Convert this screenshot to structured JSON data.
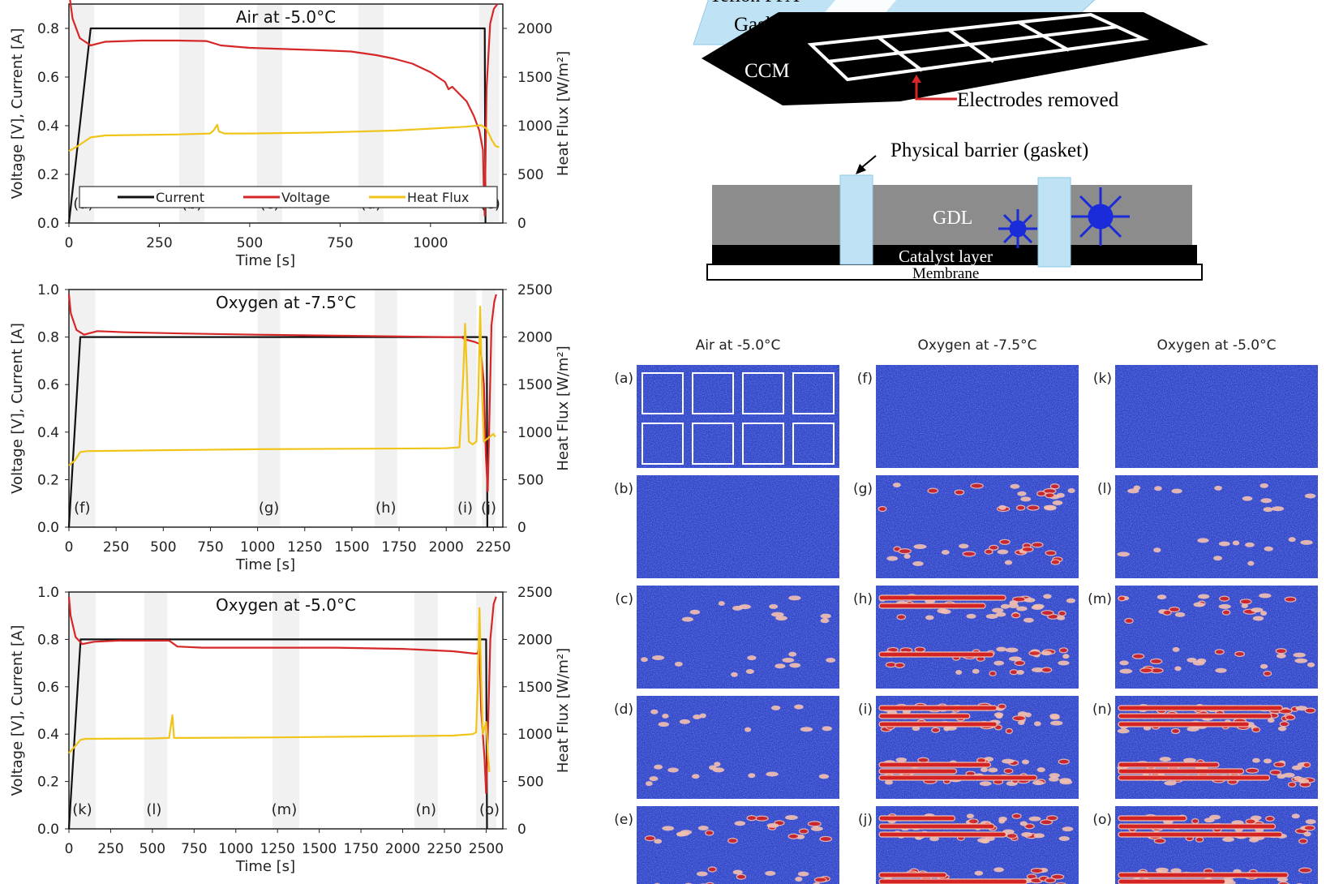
{
  "chart_data": [
    {
      "type": "line",
      "title": "Air at -5.0°C",
      "xlabel": "Time [s]",
      "ylabel": "Voltage [V], Current [A]",
      "y2label": "Heat Flux [W/m²]",
      "xlim": [
        0,
        1200
      ],
      "ylim": [
        0,
        0.9
      ],
      "y2lim": [
        0,
        2250
      ],
      "xticks": [
        "0",
        "250",
        "500",
        "750",
        "1000"
      ],
      "yticks": [
        "0.0",
        "0.2",
        "0.4",
        "0.6",
        "0.8"
      ],
      "y2ticks": [
        "0",
        "500",
        "1000",
        "1500",
        "2000"
      ],
      "grid": false,
      "legend_position": "bottom",
      "stage_labels": [
        {
          "label": "(a)",
          "x": 40
        },
        {
          "label": "(b)",
          "x": 340
        },
        {
          "label": "(c)",
          "x": 555
        },
        {
          "label": "(d)",
          "x": 835
        },
        {
          "label": "(e)",
          "x": 1165
        }
      ],
      "bands": [
        [
          0,
          70
        ],
        [
          305,
          375
        ],
        [
          520,
          590
        ],
        [
          800,
          870
        ],
        [
          1135,
          1190
        ]
      ],
      "series": [
        {
          "name": "Current",
          "color": "#111111",
          "axis": "left",
          "points": [
            [
              0,
              0
            ],
            [
              60,
              0.8
            ],
            [
              1140,
              0.8
            ],
            [
              1150,
              0.8
            ],
            [
              1152,
              0
            ]
          ]
        },
        {
          "name": "Voltage",
          "color": "#d62728",
          "axis": "left",
          "points": [
            [
              0,
              0.95
            ],
            [
              10,
              0.84
            ],
            [
              30,
              0.76
            ],
            [
              60,
              0.73
            ],
            [
              100,
              0.745
            ],
            [
              200,
              0.75
            ],
            [
              300,
              0.75
            ],
            [
              380,
              0.748
            ],
            [
              420,
              0.73
            ],
            [
              500,
              0.72
            ],
            [
              600,
              0.715
            ],
            [
              700,
              0.71
            ],
            [
              780,
              0.705
            ],
            [
              850,
              0.69
            ],
            [
              900,
              0.675
            ],
            [
              950,
              0.655
            ],
            [
              1000,
              0.62
            ],
            [
              1040,
              0.58
            ],
            [
              1050,
              0.55
            ],
            [
              1060,
              0.56
            ],
            [
              1080,
              0.53
            ],
            [
              1100,
              0.5
            ],
            [
              1120,
              0.44
            ],
            [
              1135,
              0.38
            ],
            [
              1145,
              0.3
            ],
            [
              1148,
              0.1
            ],
            [
              1150,
              0.03
            ],
            [
              1155,
              0.55
            ],
            [
              1165,
              0.82
            ],
            [
              1175,
              0.88
            ],
            [
              1185,
              0.9
            ]
          ]
        },
        {
          "name": "Heat Flux",
          "color": "#f0c419",
          "axis": "right",
          "points": [
            [
              0,
              740
            ],
            [
              20,
              780
            ],
            [
              40,
              830
            ],
            [
              60,
              880
            ],
            [
              100,
              900
            ],
            [
              200,
              905
            ],
            [
              300,
              910
            ],
            [
              390,
              920
            ],
            [
              400,
              950
            ],
            [
              410,
              1010
            ],
            [
              415,
              940
            ],
            [
              430,
              920
            ],
            [
              500,
              920
            ],
            [
              600,
              925
            ],
            [
              700,
              930
            ],
            [
              800,
              940
            ],
            [
              900,
              950
            ],
            [
              1000,
              970
            ],
            [
              1100,
              990
            ],
            [
              1140,
              1005
            ],
            [
              1155,
              970
            ],
            [
              1170,
              850
            ],
            [
              1180,
              790
            ],
            [
              1190,
              780
            ]
          ]
        }
      ]
    },
    {
      "type": "line",
      "title": "Oxygen at -7.5°C",
      "xlabel": "Time [s]",
      "ylabel": "Voltage [V], Current [A]",
      "y2label": "Heat Flux [W/m²]",
      "xlim": [
        0,
        2300
      ],
      "ylim": [
        0,
        1.0
      ],
      "y2lim": [
        0,
        2500
      ],
      "xticks": [
        "0",
        "250",
        "500",
        "750",
        "1000",
        "1250",
        "1500",
        "1750",
        "2000",
        "2250"
      ],
      "yticks": [
        "0.0",
        "0.2",
        "0.4",
        "0.6",
        "0.8",
        "1.0"
      ],
      "y2ticks": [
        "0",
        "500",
        "1000",
        "1500",
        "2000",
        "2500"
      ],
      "grid": false,
      "stage_labels": [
        {
          "label": "(f)",
          "x": 70
        },
        {
          "label": "(g)",
          "x": 1060
        },
        {
          "label": "(h)",
          "x": 1680
        },
        {
          "label": "(i)",
          "x": 2100
        },
        {
          "label": "(j)",
          "x": 2225
        }
      ],
      "bands": [
        [
          0,
          140
        ],
        [
          1000,
          1120
        ],
        [
          1620,
          1740
        ],
        [
          2040,
          2160
        ],
        [
          2190,
          2260
        ]
      ],
      "series": [
        {
          "name": "Current",
          "color": "#111111",
          "axis": "left",
          "points": [
            [
              0,
              0
            ],
            [
              60,
              0.8
            ],
            [
              2200,
              0.8
            ],
            [
              2215,
              0.8
            ],
            [
              2218,
              0
            ]
          ]
        },
        {
          "name": "Voltage",
          "color": "#d62728",
          "axis": "left",
          "points": [
            [
              0,
              0.98
            ],
            [
              10,
              0.9
            ],
            [
              40,
              0.83
            ],
            [
              80,
              0.81
            ],
            [
              150,
              0.825
            ],
            [
              300,
              0.82
            ],
            [
              600,
              0.815
            ],
            [
              1000,
              0.81
            ],
            [
              1500,
              0.805
            ],
            [
              2000,
              0.8
            ],
            [
              2080,
              0.8
            ],
            [
              2100,
              0.79
            ],
            [
              2150,
              0.78
            ],
            [
              2180,
              0.77
            ],
            [
              2200,
              0.6
            ],
            [
              2210,
              0.3
            ],
            [
              2220,
              0.15
            ],
            [
              2230,
              0.5
            ],
            [
              2240,
              0.85
            ],
            [
              2255,
              0.95
            ],
            [
              2265,
              0.98
            ]
          ]
        },
        {
          "name": "Heat Flux",
          "color": "#f0c419",
          "axis": "right",
          "points": [
            [
              0,
              650
            ],
            [
              30,
              700
            ],
            [
              60,
              790
            ],
            [
              100,
              800
            ],
            [
              500,
              810
            ],
            [
              1000,
              820
            ],
            [
              1500,
              825
            ],
            [
              2000,
              830
            ],
            [
              2070,
              840
            ],
            [
              2090,
              1600
            ],
            [
              2100,
              2140
            ],
            [
              2110,
              1600
            ],
            [
              2120,
              900
            ],
            [
              2140,
              870
            ],
            [
              2160,
              900
            ],
            [
              2170,
              1400
            ],
            [
              2180,
              2320
            ],
            [
              2190,
              1400
            ],
            [
              2200,
              900
            ],
            [
              2230,
              950
            ],
            [
              2250,
              980
            ],
            [
              2260,
              950
            ]
          ]
        }
      ]
    },
    {
      "type": "line",
      "title": "Oxygen at -5.0°C",
      "xlabel": "Time [s]",
      "ylabel": "Voltage [V], Current [A]",
      "y2label": "Heat Flux [W/m²]",
      "xlim": [
        0,
        2600
      ],
      "ylim": [
        0,
        1.0
      ],
      "y2lim": [
        0,
        2500
      ],
      "xticks": [
        "0",
        "250",
        "500",
        "750",
        "1000",
        "1250",
        "1500",
        "1750",
        "2000",
        "2250",
        "2500"
      ],
      "yticks": [
        "0.0",
        "0.2",
        "0.4",
        "0.6",
        "0.8",
        "1.0"
      ],
      "y2ticks": [
        "0",
        "500",
        "1000",
        "1500",
        "2000",
        "2500"
      ],
      "grid": false,
      "stage_labels": [
        {
          "label": "(k)",
          "x": 80
        },
        {
          "label": "(l)",
          "x": 510
        },
        {
          "label": "(m)",
          "x": 1290
        },
        {
          "label": "(n)",
          "x": 2140
        },
        {
          "label": "(o)",
          "x": 2520
        }
      ],
      "bands": [
        [
          0,
          160
        ],
        [
          450,
          590
        ],
        [
          1220,
          1380
        ],
        [
          2070,
          2210
        ],
        [
          2440,
          2560
        ]
      ],
      "series": [
        {
          "name": "Current",
          "color": "#111111",
          "axis": "left",
          "points": [
            [
              0,
              0
            ],
            [
              70,
              0.8
            ],
            [
              2480,
              0.8
            ],
            [
              2500,
              0.8
            ],
            [
              2505,
              0
            ]
          ]
        },
        {
          "name": "Voltage",
          "color": "#d62728",
          "axis": "left",
          "points": [
            [
              0,
              0.98
            ],
            [
              10,
              0.9
            ],
            [
              40,
              0.81
            ],
            [
              80,
              0.78
            ],
            [
              150,
              0.79
            ],
            [
              300,
              0.795
            ],
            [
              560,
              0.795
            ],
            [
              600,
              0.795
            ],
            [
              650,
              0.77
            ],
            [
              800,
              0.765
            ],
            [
              1200,
              0.765
            ],
            [
              1600,
              0.765
            ],
            [
              2000,
              0.76
            ],
            [
              2300,
              0.75
            ],
            [
              2430,
              0.74
            ],
            [
              2450,
              0.74
            ],
            [
              2460,
              0.78
            ],
            [
              2470,
              0.5
            ],
            [
              2490,
              0.3
            ],
            [
              2500,
              0.15
            ],
            [
              2510,
              0.4
            ],
            [
              2525,
              0.8
            ],
            [
              2545,
              0.95
            ],
            [
              2560,
              0.98
            ]
          ]
        },
        {
          "name": "Heat Flux",
          "color": "#f0c419",
          "axis": "right",
          "points": [
            [
              0,
              800
            ],
            [
              30,
              860
            ],
            [
              70,
              940
            ],
            [
              100,
              950
            ],
            [
              500,
              955
            ],
            [
              600,
              960
            ],
            [
              620,
              1200
            ],
            [
              630,
              960
            ],
            [
              700,
              960
            ],
            [
              1200,
              965
            ],
            [
              1800,
              975
            ],
            [
              2300,
              985
            ],
            [
              2420,
              1000
            ],
            [
              2440,
              1020
            ],
            [
              2450,
              1500
            ],
            [
              2460,
              2330
            ],
            [
              2470,
              1600
            ],
            [
              2480,
              1000
            ],
            [
              2500,
              1130
            ],
            [
              2510,
              800
            ],
            [
              2520,
              600
            ]
          ]
        }
      ]
    }
  ],
  "schematic": {
    "gasket_label": "Gasket",
    "top_label_partial": "Teflon PFA",
    "ccm_label": "CCM",
    "electrodes_label": "Electrodes removed",
    "barrier_label": "Physical barrier (gasket)",
    "gdl_label": "GDL",
    "catalyst_label": "Catalyst layer",
    "membrane_label": "Membrane"
  },
  "thermal_images": {
    "columns": [
      "Air at -5.0°C",
      "Oxygen at -7.5°C",
      "Oxygen at -5.0°C"
    ],
    "rows": [
      [
        "(a)",
        "(f)",
        "(k)"
      ],
      [
        "(b)",
        "(g)",
        "(l)"
      ],
      [
        "(c)",
        "(h)",
        "(m)"
      ],
      [
        "(d)",
        "(i)",
        "(n)"
      ],
      [
        "(e)",
        "(j)",
        "(o)"
      ]
    ],
    "colors": {
      "background": "#2f45c9",
      "hot": "#d42323",
      "warm": "#f2c0b0"
    }
  }
}
